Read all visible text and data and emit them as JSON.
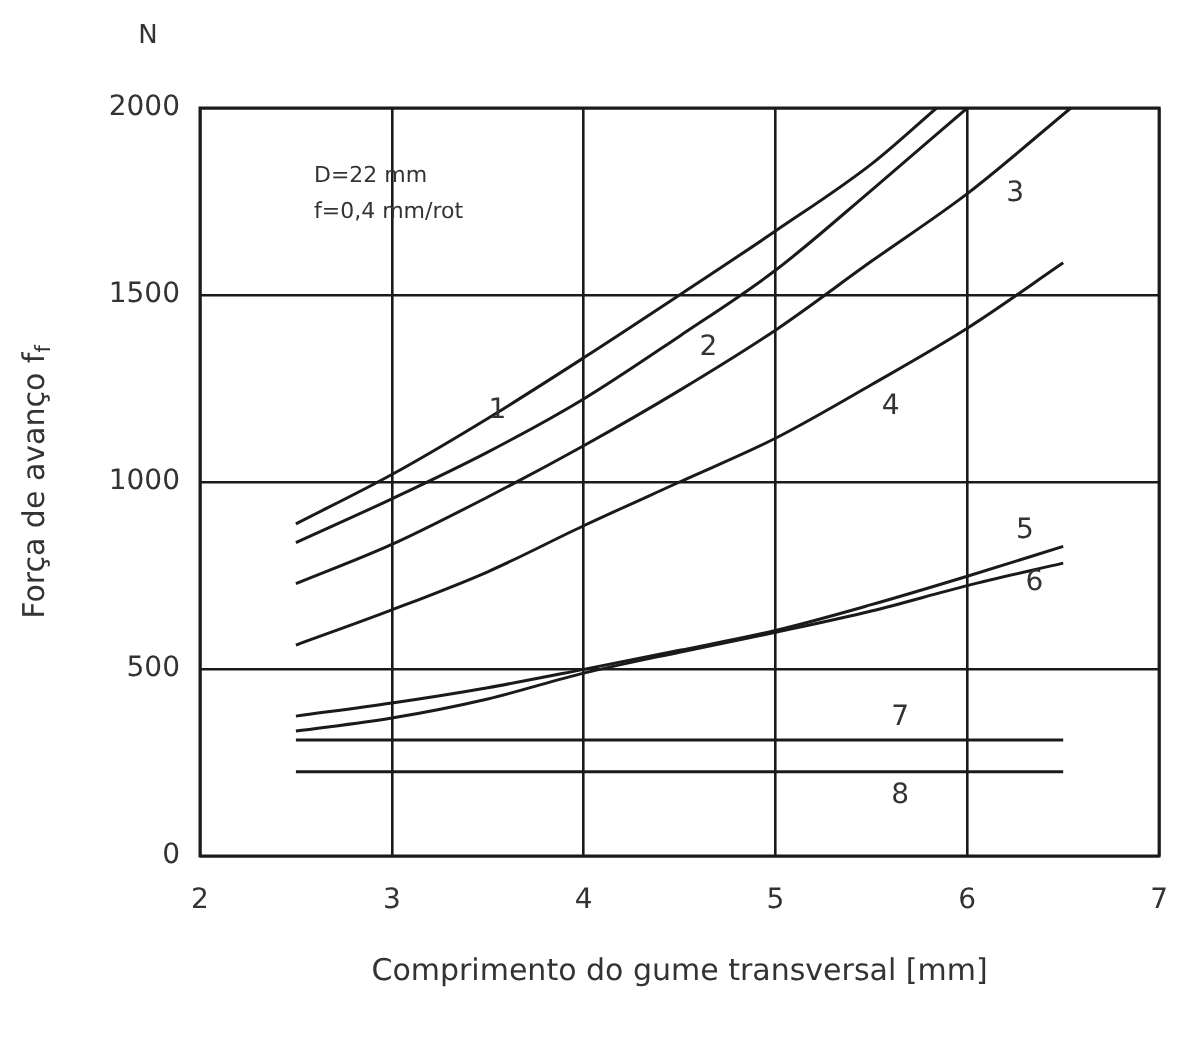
{
  "chart_data": {
    "type": "line",
    "xlabel": "Comprimento do gume transversal [mm]",
    "ylabel": "Força de avanço f$_{f}$",
    "annotations": [
      "N",
      "D=22 mm\nf=0,4 mm/rot"
    ],
    "xlim": [
      2,
      7
    ],
    "xticks": [
      2,
      3,
      4,
      5,
      6,
      7
    ],
    "ylim": [
      0,
      2000
    ],
    "yticks": [
      0,
      500,
      1000,
      1500,
      2000
    ],
    "grid": true,
    "legend": false,
    "marker": "none",
    "line_style": "solid",
    "series": [
      {
        "name": "1",
        "color": "#1a1a1a",
        "x": [
          2.5,
          3,
          3.5,
          4,
          4.5,
          5,
          5.5,
          5.84
        ],
        "values": [
          888,
          1020,
          1170,
          1332,
          1500,
          1671,
          1850,
          2000
        ]
      },
      {
        "name": "2",
        "color": "#1a1a1a",
        "x": [
          2.5,
          3,
          3.5,
          4,
          4.5,
          5,
          5.5,
          6.0
        ],
        "values": [
          838,
          955,
          1080,
          1222,
          1390,
          1566,
          1780,
          2000
        ]
      },
      {
        "name": "3",
        "color": "#1a1a1a",
        "x": [
          2.5,
          3,
          3.5,
          4,
          4.5,
          5,
          5.5,
          6,
          6.54
        ],
        "values": [
          728,
          833,
          960,
          1097,
          1245,
          1406,
          1590,
          1771,
          2000
        ]
      },
      {
        "name": "4",
        "color": "#1a1a1a",
        "x": [
          2.5,
          3,
          3.5,
          4,
          4.5,
          5,
          5.5,
          6,
          6.5
        ],
        "values": [
          564,
          658,
          760,
          883,
          1000,
          1117,
          1260,
          1411,
          1586
        ]
      },
      {
        "name": "5",
        "color": "#1a1a1a",
        "x": [
          2.5,
          3,
          3.5,
          4,
          4.5,
          5,
          5.5,
          6,
          6.5
        ],
        "values": [
          374,
          409,
          450,
          499,
          550,
          603,
          672,
          748,
          828
        ]
      },
      {
        "name": "6",
        "color": "#1a1a1a",
        "x": [
          2.5,
          3,
          3.5,
          4,
          4.5,
          5,
          5.5,
          6,
          6.5
        ],
        "values": [
          334,
          369,
          420,
          489,
          545,
          598,
          655,
          723,
          783
        ]
      },
      {
        "name": "7",
        "color": "#1a1a1a",
        "x": [
          2.5,
          6.5
        ],
        "values": [
          310,
          310
        ]
      },
      {
        "name": "8",
        "color": "#1a1a1a",
        "x": [
          2.5,
          6.5
        ],
        "values": [
          225,
          225
        ]
      }
    ]
  }
}
